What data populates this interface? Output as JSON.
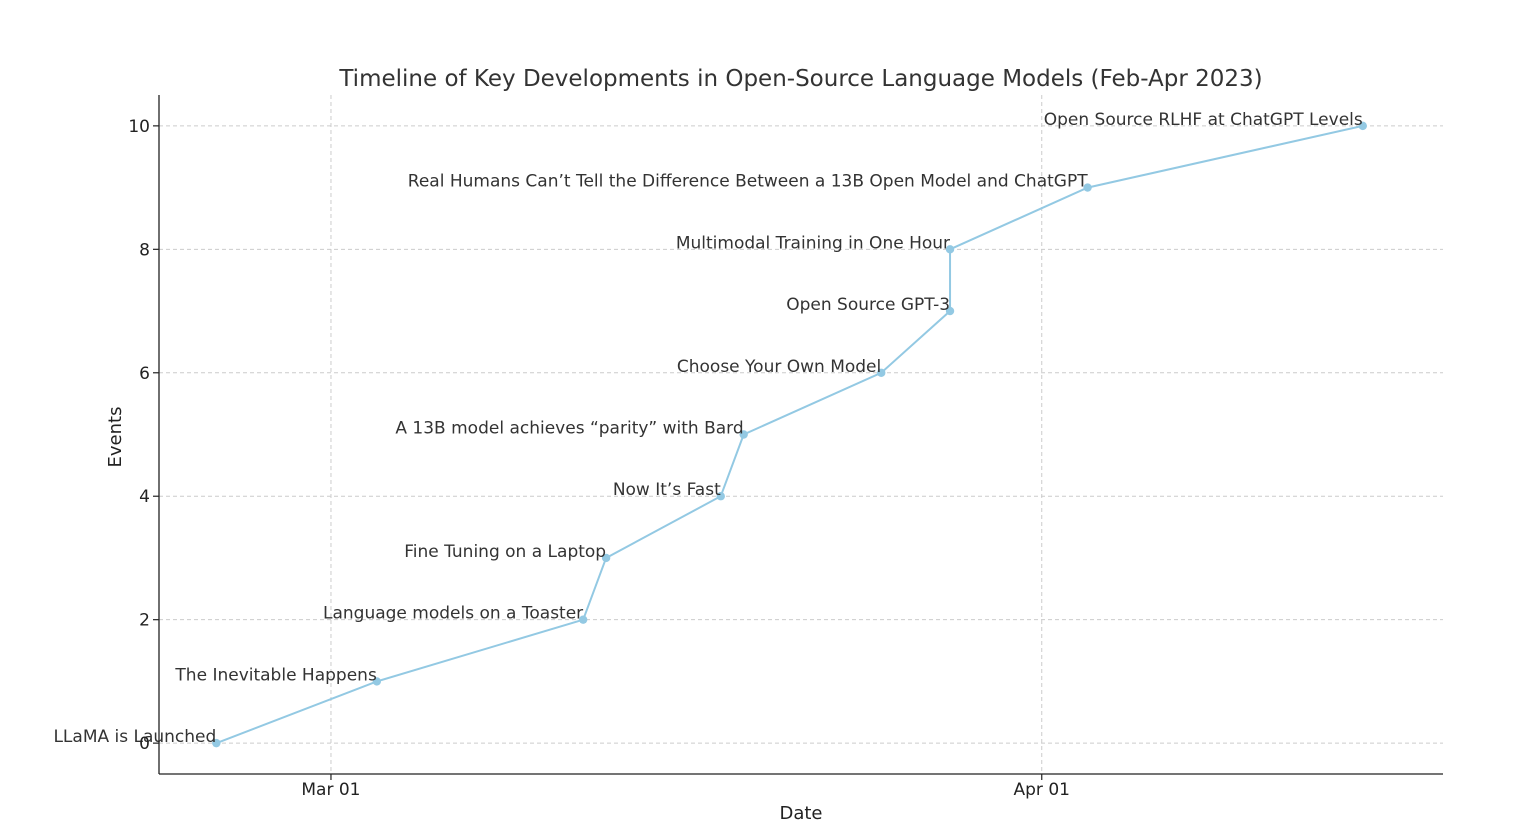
{
  "chart_data": {
    "type": "line",
    "title": "Timeline of Key Developments in Open-Source Language Models (Feb-Apr 2023)",
    "xlabel": "Date",
    "ylabel": "Events",
    "x_ticks": [
      {
        "date": "2023-03-01",
        "label": "Mar 01"
      },
      {
        "date": "2023-04-01",
        "label": "Apr 01"
      }
    ],
    "y_ticks": [
      0,
      2,
      4,
      6,
      8,
      10
    ],
    "xlim": [
      "2023-02-21.5",
      "2023-04-18.5"
    ],
    "ylim": [
      -0.5,
      10.5
    ],
    "grid": true,
    "line_color": "#93c9e3",
    "points": [
      {
        "date": "2023-02-24",
        "y": 0,
        "label": "LLaMA is Launched"
      },
      {
        "date": "2023-03-03",
        "y": 1,
        "label": "The Inevitable Happens"
      },
      {
        "date": "2023-03-12",
        "y": 2,
        "label": "Language models on a Toaster"
      },
      {
        "date": "2023-03-13",
        "y": 3,
        "label": "Fine Tuning on a Laptop"
      },
      {
        "date": "2023-03-18",
        "y": 4,
        "label": "Now It’s Fast"
      },
      {
        "date": "2023-03-19",
        "y": 5,
        "label": "A 13B model achieves “parity” with Bard"
      },
      {
        "date": "2023-03-25",
        "y": 6,
        "label": "Choose Your Own Model"
      },
      {
        "date": "2023-03-28",
        "y": 7,
        "label": "Open Source GPT-3"
      },
      {
        "date": "2023-03-28",
        "y": 8,
        "label": "Multimodal Training in One Hour"
      },
      {
        "date": "2023-04-03",
        "y": 9,
        "label": "Real Humans Can’t Tell the Difference Between a 13B Open Model and ChatGPT"
      },
      {
        "date": "2023-04-15",
        "y": 10,
        "label": "Open Source RLHF at ChatGPT Levels"
      }
    ]
  }
}
